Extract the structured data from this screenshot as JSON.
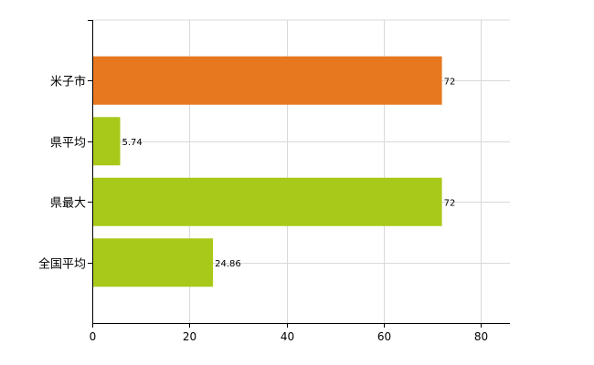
{
  "chart_data": {
    "type": "bar",
    "orientation": "horizontal",
    "categories": [
      "米子市",
      "県平均",
      "県最大",
      "全国平均"
    ],
    "values": [
      72,
      5.74,
      72,
      24.86
    ],
    "value_labels": [
      "72",
      "5.74",
      "72",
      "24.86"
    ],
    "bar_colors": [
      "#e8781f",
      "#a9c91a",
      "#a9c91a",
      "#a9c91a"
    ],
    "xlim": [
      0,
      86
    ],
    "x_ticks": [
      0,
      20,
      40,
      60,
      80
    ],
    "x_tick_labels": [
      "0",
      "20",
      "40",
      "60",
      "80"
    ],
    "grid": true,
    "legend": "none"
  }
}
